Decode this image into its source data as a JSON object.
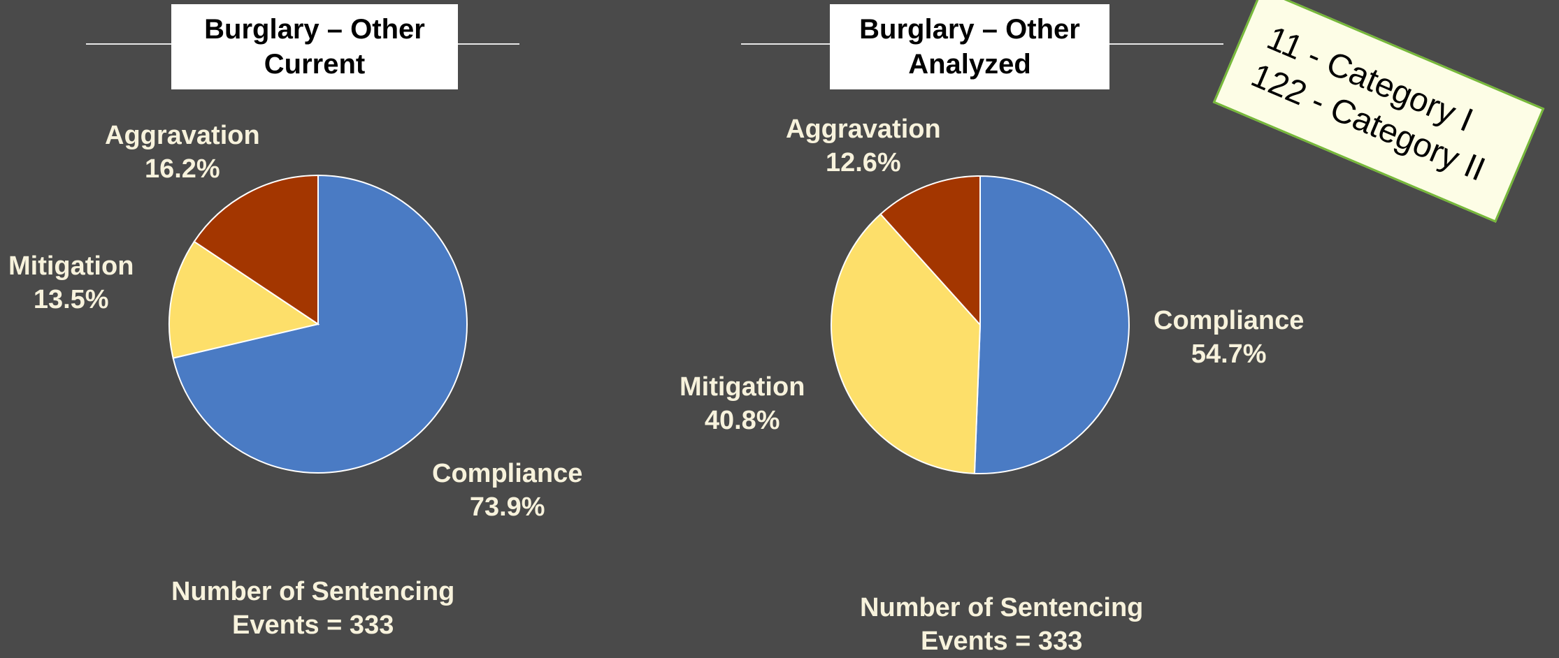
{
  "colors": {
    "background": "#4a4a4a",
    "compliance": "#4a7bc4",
    "mitigation": "#fddf6a",
    "aggravation": "#a33600",
    "label_text": "#f7f2dc",
    "note_border": "#76b83a",
    "note_fill": "#fdfde6"
  },
  "chart_data": [
    {
      "type": "pie",
      "title_line1": "Burglary – Other",
      "title_line2": "Current",
      "slices": [
        {
          "name": "Compliance",
          "value": 73.9,
          "label": "73.9%"
        },
        {
          "name": "Mitigation",
          "value": 13.5,
          "label": "13.5%"
        },
        {
          "name": "Aggravation",
          "value": 16.2,
          "label": "16.2%"
        }
      ],
      "footer_line1": "Number of Sentencing",
      "footer_line2": "Events = 333"
    },
    {
      "type": "pie",
      "title_line1": "Burglary – Other",
      "title_line2": "Analyzed",
      "slices": [
        {
          "name": "Compliance",
          "value": 54.7,
          "label": "54.7%"
        },
        {
          "name": "Mitigation",
          "value": 40.8,
          "label": "40.8%"
        },
        {
          "name": "Aggravation",
          "value": 12.6,
          "label": "12.6%"
        }
      ],
      "footer_line1": "Number of Sentencing",
      "footer_line2": "Events = 333"
    }
  ],
  "note": {
    "line1": "11 - Category I",
    "line2": "122 - Category II"
  }
}
